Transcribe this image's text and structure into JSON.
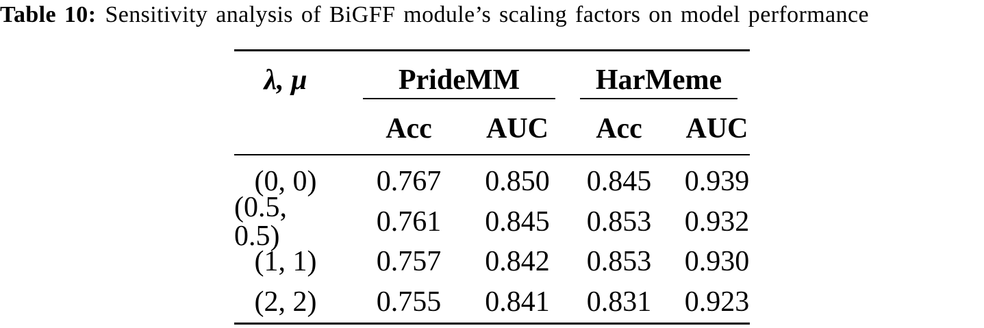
{
  "caption": {
    "label": "Table 10:",
    "text": "Sensitivity analysis of BiGFF module’s scaling factors on model performance"
  },
  "table": {
    "param_header": "λ, μ",
    "groups": [
      {
        "label": "PrideMM",
        "columns": [
          "Acc",
          "AUC"
        ]
      },
      {
        "label": "HarMeme",
        "columns": [
          "Acc",
          "AUC"
        ]
      }
    ],
    "rows": [
      {
        "params": "(0, 0)",
        "values": [
          "0.767",
          "0.850",
          "0.845",
          "0.939"
        ]
      },
      {
        "params": "(0.5, 0.5)",
        "values": [
          "0.761",
          "0.845",
          "0.853",
          "0.932"
        ]
      },
      {
        "params": "(1, 1)",
        "values": [
          "0.757",
          "0.842",
          "0.853",
          "0.930"
        ]
      },
      {
        "params": "(2, 2)",
        "values": [
          "0.755",
          "0.841",
          "0.831",
          "0.923"
        ]
      }
    ]
  },
  "colors": {
    "text": "#000000",
    "background": "#ffffff",
    "rule": "#000000"
  }
}
